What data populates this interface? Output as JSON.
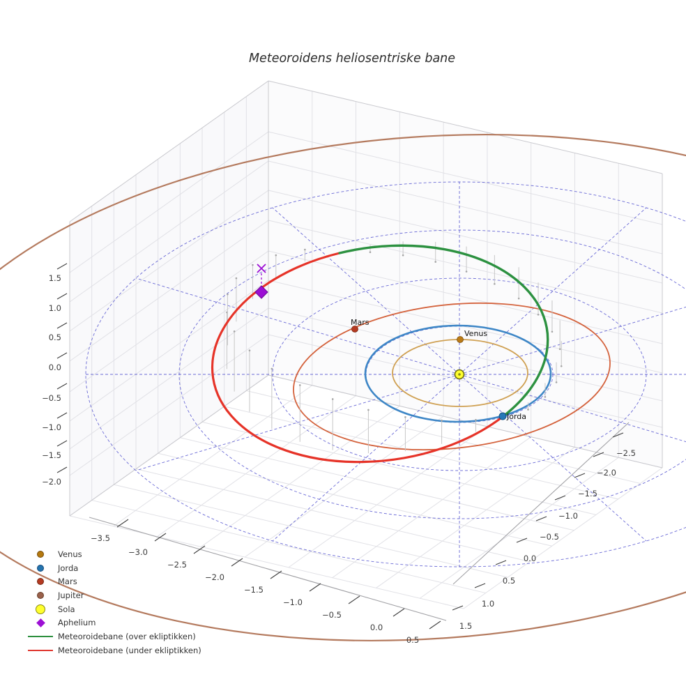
{
  "title": "Meteoroidens heliosentriske bane",
  "plot_labels": {
    "venus": "Venus",
    "mars": "Mars",
    "jorda": "Jorda"
  },
  "legend": {
    "items": [
      {
        "label": "Venus",
        "marker": "dot",
        "color": "#b5790f"
      },
      {
        "label": "Jorda",
        "marker": "dot",
        "color": "#2474ae"
      },
      {
        "label": "Mars",
        "marker": "dot",
        "color": "#b53a22"
      },
      {
        "label": "Jupiter",
        "marker": "dot",
        "color": "#9a614b"
      },
      {
        "label": "Sola",
        "marker": "circle",
        "color": "#ffff2e"
      },
      {
        "label": "Aphelium",
        "marker": "diamond",
        "color": "#9c0fd4"
      },
      {
        "label": "Meteoroidebane (over ekliptikken)",
        "marker": "line",
        "color": "#2c8f3e"
      },
      {
        "label": "Meteoroidebane (under ekliptikken)",
        "marker": "line",
        "color": "#e03830"
      }
    ]
  },
  "chart_data": {
    "type": "line",
    "projection": "3d",
    "title": "Meteoroidens heliosentriske bane",
    "legend_position": "lower-left",
    "axes": {
      "x": {
        "ticks": [
          "−3.5",
          "−3.0",
          "−2.5",
          "−2.0",
          "−1.5",
          "−1.0",
          "−0.5",
          "0.0",
          "0.5"
        ],
        "range": [
          -3.75,
          0.75
        ]
      },
      "y": {
        "ticks": [
          "−2.5",
          "−2.0",
          "−1.5",
          "−1.0",
          "−0.5",
          "0.0",
          "0.5",
          "1.0",
          "1.5"
        ],
        "range": [
          -2.75,
          1.75
        ]
      },
      "z": {
        "ticks": [
          "1.5",
          "1.0",
          "0.5",
          "0.0",
          "−0.5",
          "−1.0",
          "−1.5",
          "−2.0"
        ],
        "range": [
          -2.3,
          1.8
        ]
      }
    },
    "grid": {
      "ecliptic_polar_grid": {
        "circle_radii_au": [
          1,
          2,
          3,
          4
        ],
        "spokes": 12,
        "style": "dashed",
        "color": "#4545cc"
      },
      "panes": "light-gray"
    },
    "series": [
      {
        "name": "Venus",
        "type": "orbit-line",
        "color": "#cfa052",
        "approx_radius_au": 0.72
      },
      {
        "name": "Jorda",
        "type": "orbit-line",
        "color": "#3d86c6",
        "approx_radius_au": 1.0
      },
      {
        "name": "Mars",
        "type": "orbit-line",
        "color": "#d4623c",
        "approx_radius_au": 1.6
      },
      {
        "name": "Jupiter",
        "type": "orbit-line",
        "color": "#b47a5e",
        "approx_radius_au": 5.2
      },
      {
        "name": "Meteoroidebane (over ekliptikken)",
        "type": "orbit-segment",
        "color": "#2c9140",
        "z": "above ecliptic"
      },
      {
        "name": "Meteoroidebane (under ekliptikken)",
        "type": "orbit-segment",
        "color": "#e63328",
        "z": "below ecliptic"
      }
    ],
    "markers": [
      {
        "name": "Sola",
        "symbol": "circle",
        "color": "#ffff2e"
      },
      {
        "name": "Venus",
        "symbol": "dot",
        "color": "#b5790f"
      },
      {
        "name": "Jorda",
        "symbol": "dot",
        "color": "#2474ae"
      },
      {
        "name": "Mars",
        "symbol": "dot",
        "color": "#b53a22"
      },
      {
        "name": "Aphelium",
        "symbol": "diamond",
        "color": "#9c0fd4"
      },
      {
        "name": "Aphelium-projeksjon",
        "symbol": "x",
        "color": "#9c0fd4"
      }
    ]
  }
}
